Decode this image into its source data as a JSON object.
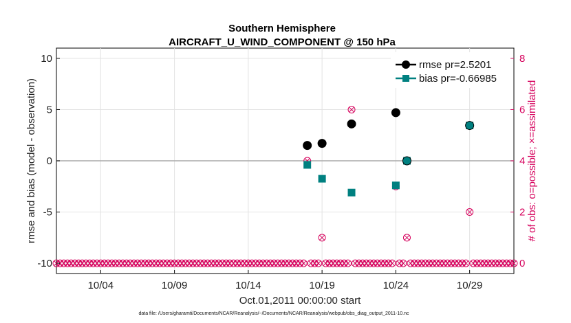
{
  "chart_data": {
    "type": "scatter",
    "title": "Southern Hemisphere",
    "subtitle": "AIRCRAFT_U_WIND_COMPONENT @ 150 hPa",
    "xlabel": "Oct.01,2011 00:00:00 start",
    "ylabel": "rmse and bias (model - observation)",
    "y2label": "# of obs: o=possible; ×=assimilated",
    "footnote": "data file: /Users/gharamti/Documents/NCAR/Reanalysis/~/Documents/NCAR/Reanalysis/webpub/obs_diag_output_2011-10.nc",
    "xlim": [
      1,
      32
    ],
    "ylim": [
      -11,
      11
    ],
    "y2lim": [
      -0.4,
      8.4
    ],
    "x_ticks": [
      4,
      9,
      14,
      19,
      24,
      29
    ],
    "x_tick_labels": [
      "10/04",
      "10/09",
      "10/14",
      "10/19",
      "10/24",
      "10/29"
    ],
    "y_ticks": [
      10,
      5,
      0,
      -5,
      -10
    ],
    "y_tick_labels": [
      "10",
      "5",
      "0",
      "-5",
      "-10"
    ],
    "y2_ticks": [
      8,
      6,
      4,
      2,
      0
    ],
    "y2_tick_labels": [
      "8",
      "6",
      "4",
      "2",
      "0"
    ],
    "grid": true,
    "legend_position": "top-right",
    "colors": {
      "rmse": "#000000",
      "bias": "#008080",
      "obs": "#d6005c",
      "zero_line": "#aaaaaa"
    },
    "series": [
      {
        "name": "rmse pr=2.5201",
        "axis": "left",
        "marker": "circle",
        "x": [
          18,
          19,
          21,
          24,
          24.75,
          29
        ],
        "y": [
          1.5,
          1.7,
          3.6,
          4.7,
          0.0,
          3.45
        ]
      },
      {
        "name": "bias pr=-0.66985",
        "axis": "left",
        "marker": "square",
        "x": [
          18,
          19,
          21,
          24,
          24.75,
          29
        ],
        "y": [
          -0.4,
          -1.75,
          -3.1,
          -2.4,
          0.0,
          3.45
        ]
      },
      {
        "name": "obs possible",
        "axis": "right",
        "marker": "circle-open",
        "x": [
          18,
          19,
          21,
          24,
          24.75,
          29
        ],
        "y": [
          4,
          1,
          6,
          3,
          1,
          2
        ],
        "zero_elsewhere": true
      },
      {
        "name": "obs assimilated",
        "axis": "right",
        "marker": "cross",
        "x": [
          18,
          19,
          21,
          24,
          24.75,
          29
        ],
        "y": [
          4,
          1,
          6,
          3,
          1,
          2
        ],
        "zero_elsewhere": true
      }
    ],
    "obs_time_step_days": 0.25
  }
}
